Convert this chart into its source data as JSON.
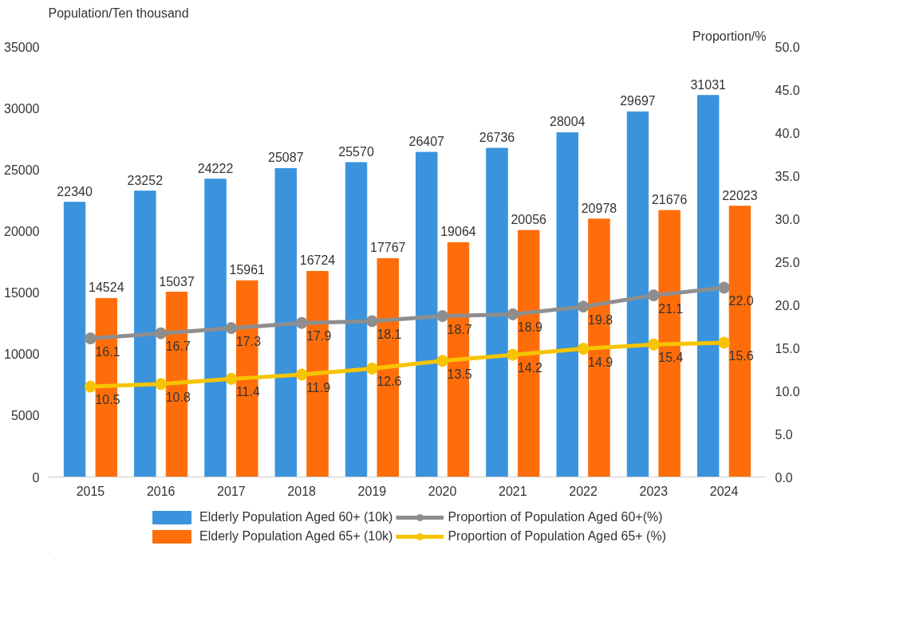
{
  "chart_data": {
    "type": "bar",
    "ylabel": "Population/Ten thousand",
    "y2label": "Proportion/%",
    "categories": [
      "2015",
      "2016",
      "2017",
      "2018",
      "2019",
      "2020",
      "2021",
      "2022",
      "2023",
      "2024"
    ],
    "series": [
      {
        "name": "Elderly Population Aged 60+ (10k)",
        "color": "#3a93dc",
        "values": [
          22340,
          23252,
          24222,
          25087,
          25570,
          26407,
          26736,
          28004,
          29697,
          31031
        ]
      },
      {
        "name": "Elderly Population Aged 65+ (10k)",
        "color": "#ff6d0a",
        "values": [
          14524,
          15037,
          15961,
          16724,
          17767,
          19064,
          20056,
          20978,
          21676,
          22023
        ]
      },
      {
        "name": "Proportion of Population Aged 60+(%)",
        "type": "line",
        "axis": "y2",
        "color": "#8e8e8e",
        "values": [
          16.1,
          16.7,
          17.3,
          17.9,
          18.1,
          18.7,
          18.9,
          19.8,
          21.1,
          22.0
        ],
        "value_labels": [
          "16.1",
          "16.7",
          "17.3",
          "17.9",
          "18.1",
          "18.7",
          "18.9",
          "19.8",
          "21.1",
          "22.0"
        ]
      },
      {
        "name": "Proportion of Population Aged 65+ (%)",
        "type": "line",
        "axis": "y2",
        "color": "#f6c400",
        "values": [
          10.5,
          10.8,
          11.4,
          11.9,
          12.6,
          13.5,
          14.2,
          14.9,
          15.4,
          15.6
        ],
        "value_labels": [
          "10.5",
          "10.8",
          "11.4",
          "11.9",
          "12.6",
          "13.5",
          "14.2",
          "14.9",
          "15.4",
          "15.6"
        ]
      }
    ],
    "ylim": [
      0,
      35000
    ],
    "yticks": [
      0,
      5000,
      10000,
      15000,
      20000,
      25000,
      30000,
      35000
    ],
    "y2lim": [
      0,
      50
    ],
    "y2ticks": [
      {
        "value": 0,
        "label": "0.0"
      },
      {
        "value": 5,
        "label": "5.0"
      },
      {
        "value": 10,
        "label": "10.0"
      },
      {
        "value": 15,
        "label": "15.0"
      },
      {
        "value": 20,
        "label": "20.0"
      },
      {
        "value": 25,
        "label": "25.0"
      },
      {
        "value": 30,
        "label": "30.0"
      },
      {
        "value": 35,
        "label": "35.0"
      },
      {
        "value": 40,
        "label": "40.0"
      },
      {
        "value": 45,
        "label": "45.0"
      },
      {
        "value": 50,
        "label": "50.0"
      }
    ],
    "data_labels": true,
    "marker": "circle",
    "line_style": "solid",
    "grid": false,
    "legend": "bottom"
  }
}
